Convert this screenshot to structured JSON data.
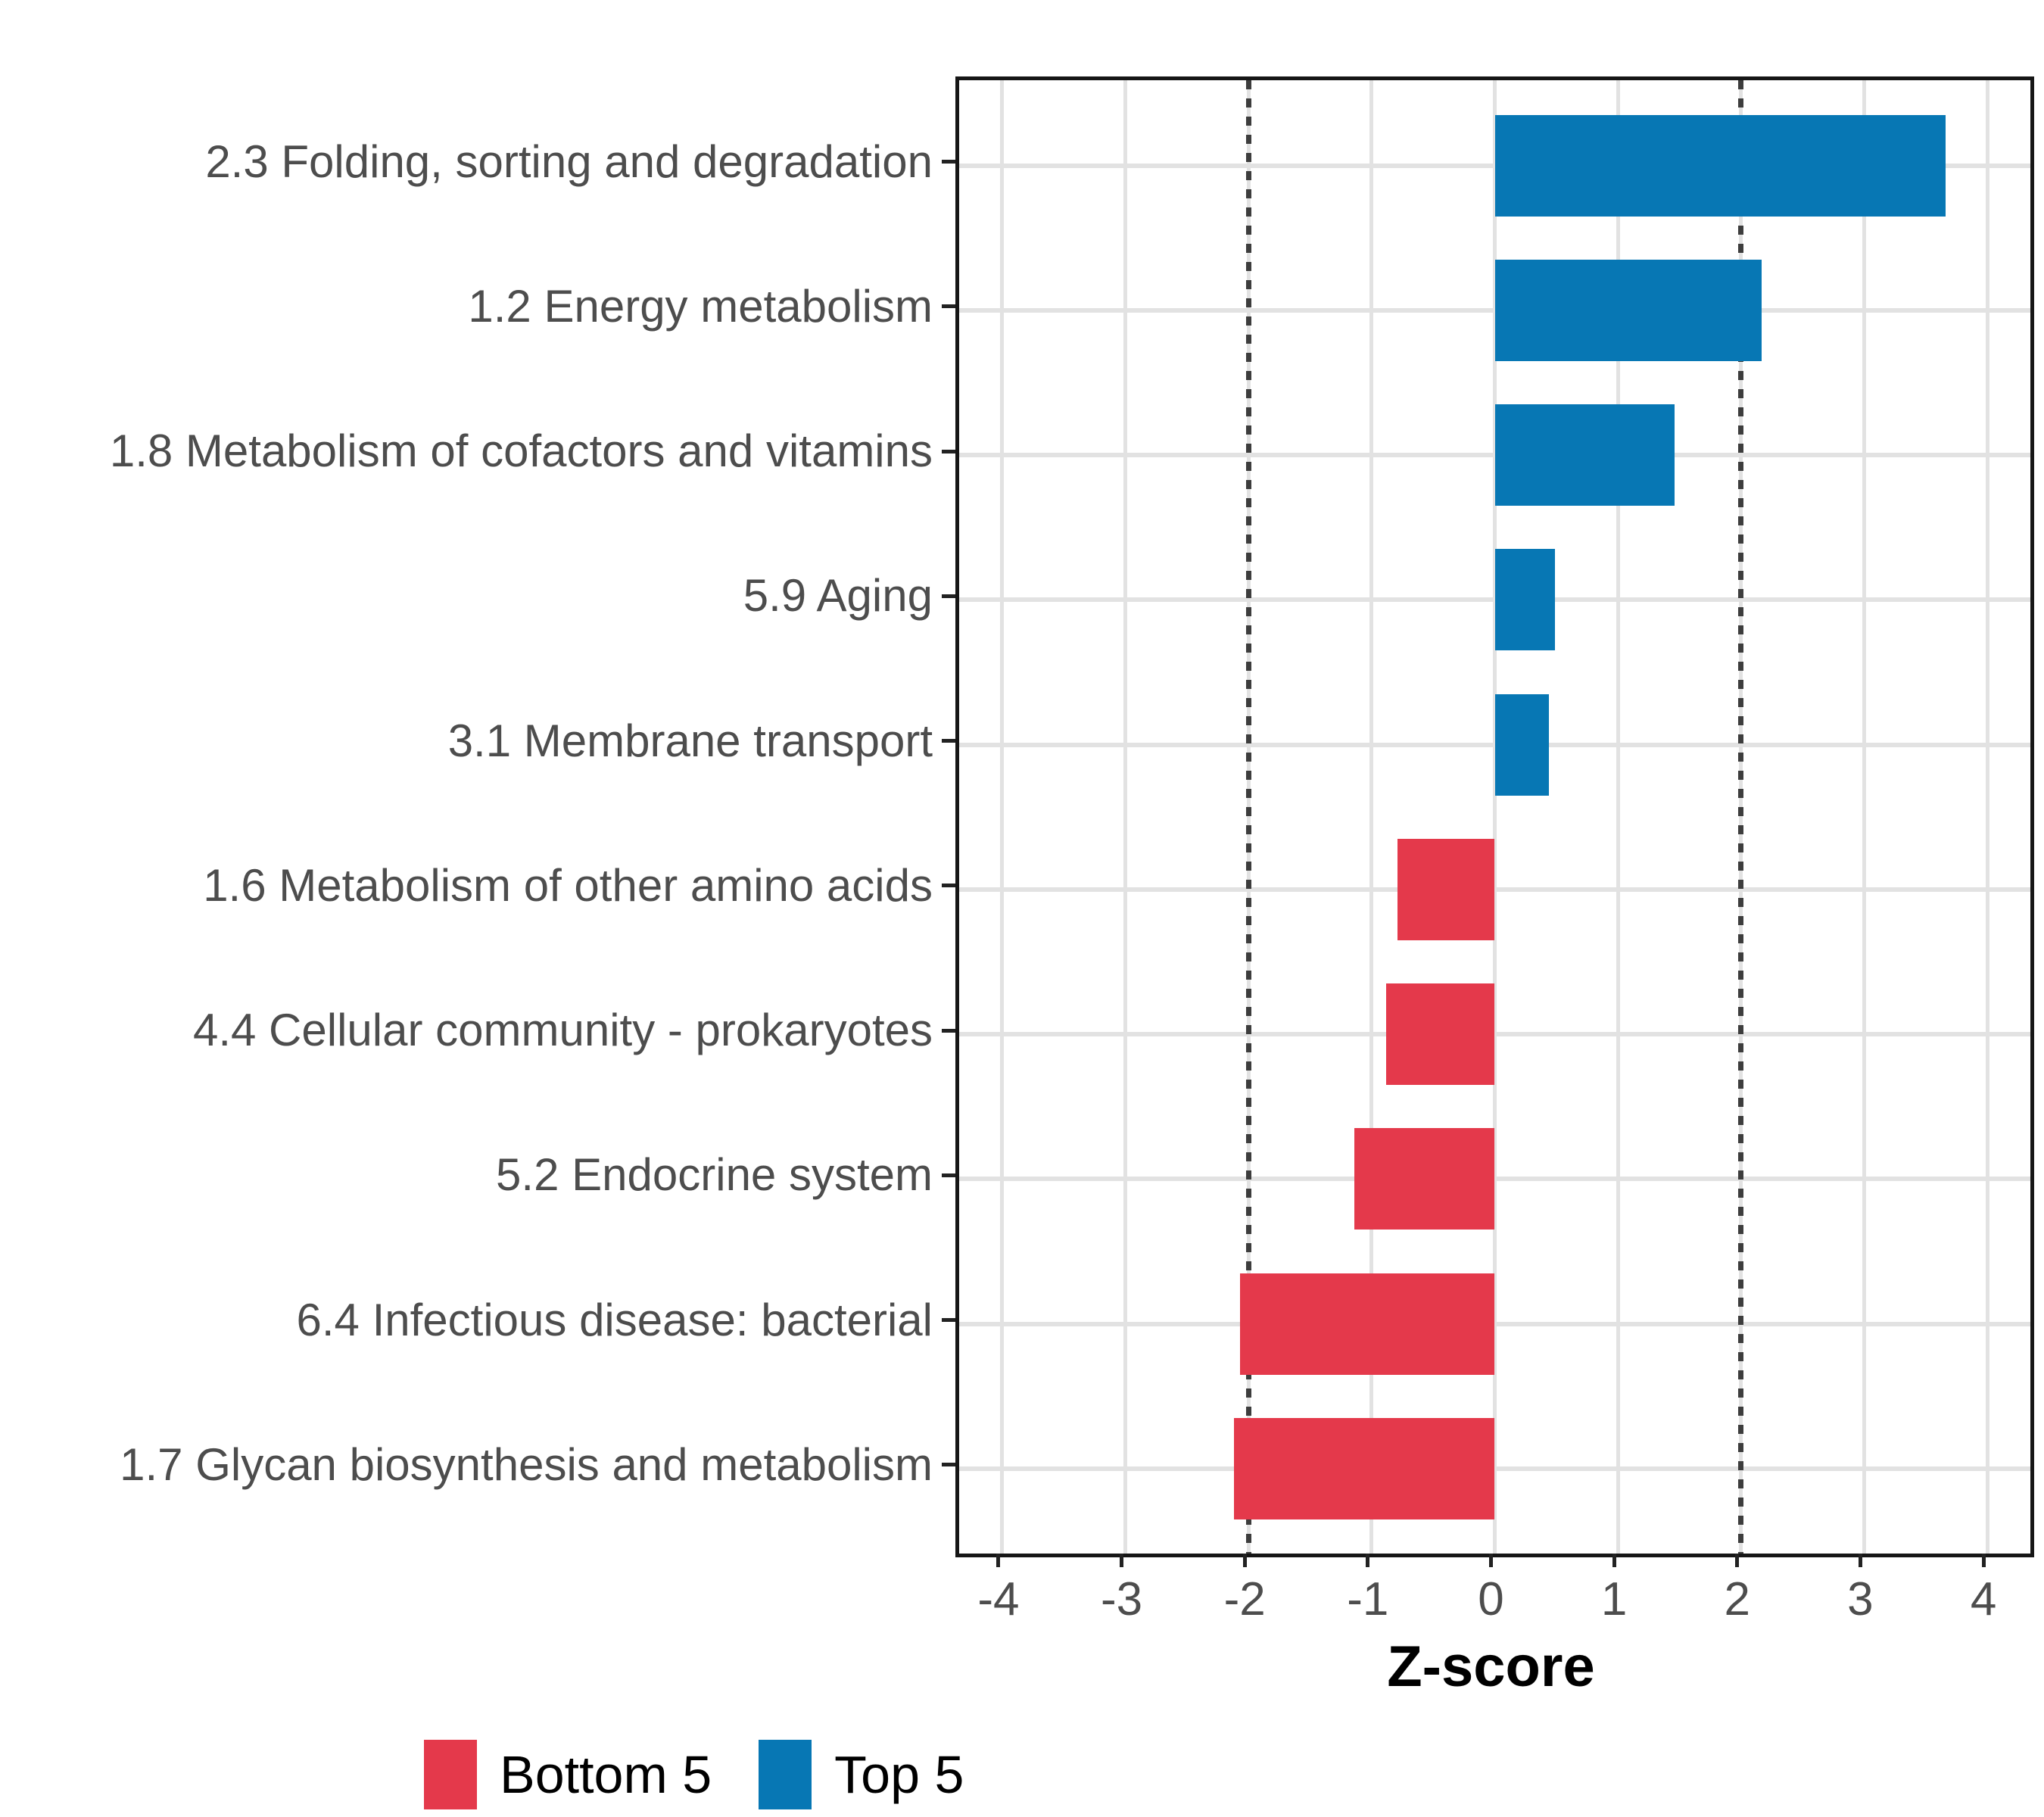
{
  "chart_data": {
    "type": "bar",
    "orientation": "horizontal",
    "title": "",
    "xlabel": "Z-score",
    "categories": [
      "2.3 Folding, sorting and degradation",
      "1.2 Energy metabolism",
      "1.8 Metabolism of cofactors and vitamins",
      "5.9 Aging",
      "3.1 Membrane transport",
      "1.6 Metabolism of other amino acids",
      "4.4 Cellular community - prokaryotes",
      "5.2 Endocrine system",
      "6.4 Infectious disease: bacterial",
      "1.7 Glycan biosynthesis and metabolism"
    ],
    "series": [
      {
        "name": "Z-score",
        "values": [
          3.66,
          2.17,
          1.46,
          0.49,
          0.44,
          -0.79,
          -0.88,
          -1.14,
          -2.07,
          -2.12
        ]
      }
    ],
    "groups": [
      "Top 5",
      "Top 5",
      "Top 5",
      "Top 5",
      "Top 5",
      "Bottom 5",
      "Bottom 5",
      "Bottom 5",
      "Bottom 5",
      "Bottom 5"
    ],
    "x_ticks": [
      "-4",
      "-3",
      "-2",
      "-1",
      "0",
      "1",
      "2",
      "3",
      "4"
    ],
    "x_tick_values": [
      -4,
      -3,
      -2,
      -1,
      0,
      1,
      2,
      3,
      4
    ],
    "xlim": [
      -4.35,
      4.35
    ],
    "reference_lines": [
      -2,
      2
    ],
    "grid": true,
    "legend_position": "bottom",
    "legend": [
      {
        "label": "Bottom 5",
        "color": "#E4394B"
      },
      {
        "label": "Top 5",
        "color": "#0777B4"
      }
    ],
    "colors": {
      "Top 5": "#0777B4",
      "Bottom 5": "#E4394B",
      "grid": "#E2E2E2",
      "axis_text": "#4D4D4D",
      "refline": "#3D3D3D",
      "panel_border": "#161616"
    }
  }
}
